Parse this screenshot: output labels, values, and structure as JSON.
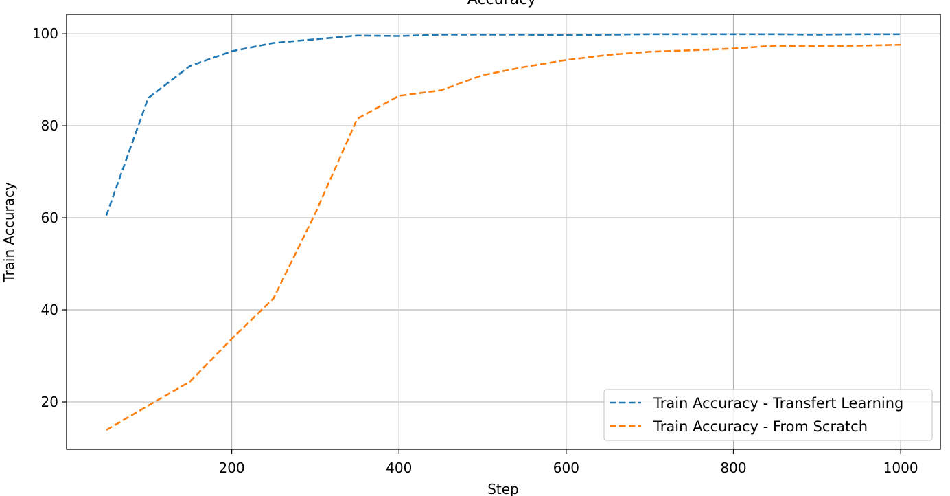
{
  "chart_data": {
    "type": "line",
    "title": "Accuracy",
    "xlabel": "Step",
    "ylabel": "Train Accuracy",
    "xlim": [
      2.5,
      1047.5
    ],
    "ylim": [
      9.7,
      104.2
    ],
    "x_ticks": [
      200,
      400,
      600,
      800,
      1000
    ],
    "x_tick_labels": [
      "200",
      "400",
      "600",
      "800",
      "1000"
    ],
    "y_ticks": [
      20,
      40,
      60,
      80,
      100
    ],
    "y_tick_labels": [
      "20",
      "40",
      "60",
      "80",
      "100"
    ],
    "grid": true,
    "legend_position": "lower-right",
    "series": [
      {
        "name": "Train Accuracy - Transfert Learning",
        "color": "#1f77b4",
        "style": "dashed",
        "x": [
          50,
          100,
          150,
          200,
          250,
          300,
          350,
          400,
          450,
          500,
          550,
          600,
          650,
          700,
          750,
          800,
          850,
          900,
          950,
          1000
        ],
        "y": [
          60.5,
          86.0,
          93.0,
          96.2,
          98.0,
          98.8,
          99.6,
          99.5,
          99.8,
          99.8,
          99.8,
          99.7,
          99.8,
          99.9,
          99.9,
          99.9,
          99.9,
          99.8,
          99.9,
          99.9
        ]
      },
      {
        "name": "Train Accuracy - From Scratch",
        "color": "#ff7f0e",
        "style": "dashed",
        "x": [
          50,
          100,
          150,
          200,
          250,
          300,
          350,
          400,
          450,
          500,
          550,
          600,
          650,
          700,
          750,
          800,
          850,
          900,
          950,
          1000
        ],
        "y": [
          13.9,
          19.2,
          24.4,
          33.7,
          42.5,
          61.0,
          81.5,
          86.5,
          87.7,
          91.0,
          92.8,
          94.3,
          95.4,
          96.1,
          96.4,
          96.8,
          97.4,
          97.3,
          97.4,
          97.6
        ]
      }
    ]
  }
}
